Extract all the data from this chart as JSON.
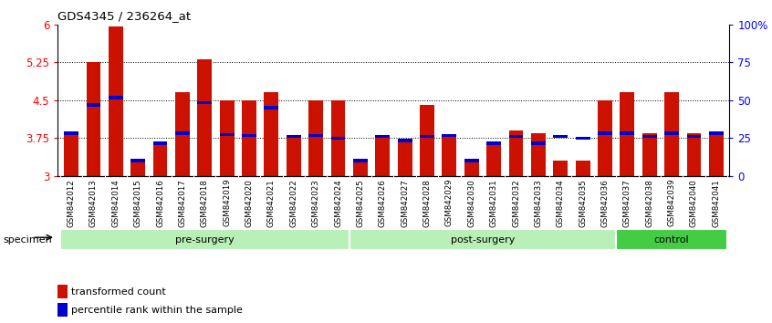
{
  "title": "GDS4345 / 236264_at",
  "samples": [
    "GSM842012",
    "GSM842013",
    "GSM842014",
    "GSM842015",
    "GSM842016",
    "GSM842017",
    "GSM842018",
    "GSM842019",
    "GSM842020",
    "GSM842021",
    "GSM842022",
    "GSM842023",
    "GSM842024",
    "GSM842025",
    "GSM842026",
    "GSM842027",
    "GSM842028",
    "GSM842029",
    "GSM842030",
    "GSM842031",
    "GSM842032",
    "GSM842033",
    "GSM842034",
    "GSM842035",
    "GSM842036",
    "GSM842037",
    "GSM842038",
    "GSM842039",
    "GSM842040",
    "GSM842041"
  ],
  "bar_values": [
    3.85,
    5.25,
    5.95,
    3.3,
    3.65,
    4.65,
    5.3,
    4.5,
    4.5,
    4.65,
    3.8,
    4.5,
    4.5,
    3.3,
    3.8,
    3.7,
    4.4,
    3.8,
    3.3,
    3.65,
    3.9,
    3.85,
    3.3,
    3.3,
    4.5,
    4.65,
    3.85,
    4.65,
    3.85,
    3.85
  ],
  "blue_markers": [
    3.85,
    4.4,
    4.55,
    3.3,
    3.65,
    3.85,
    4.45,
    3.82,
    3.8,
    4.35,
    3.78,
    3.8,
    3.75,
    3.3,
    3.78,
    3.7,
    3.78,
    3.8,
    3.3,
    3.65,
    3.78,
    3.65,
    3.78,
    3.75,
    3.85,
    3.85,
    3.78,
    3.85,
    3.78,
    3.85
  ],
  "groups": [
    {
      "label": "pre-surgery",
      "start": 0,
      "end": 13,
      "color": "#b8f0b8"
    },
    {
      "label": "post-surgery",
      "start": 13,
      "end": 25,
      "color": "#b8f0b8"
    },
    {
      "label": "control",
      "start": 25,
      "end": 30,
      "color": "#44cc44"
    }
  ],
  "bar_color": "#cc1100",
  "blue_color": "#0000cc",
  "ymin": 3.0,
  "ymax": 6.0,
  "yticks": [
    3.0,
    3.75,
    4.5,
    5.25,
    6.0
  ],
  "ytick_labels": [
    "3",
    "3.75",
    "4.5",
    "5.25",
    "6"
  ],
  "right_ytick_vals": [
    0.0,
    0.25,
    0.5,
    0.75,
    1.0
  ],
  "right_ytick_labels": [
    "0",
    "25",
    "50",
    "75",
    "100%"
  ],
  "hlines": [
    3.75,
    4.5,
    5.25
  ],
  "legend1": "transformed count",
  "legend2": "percentile rank within the sample",
  "specimen_label": "specimen"
}
